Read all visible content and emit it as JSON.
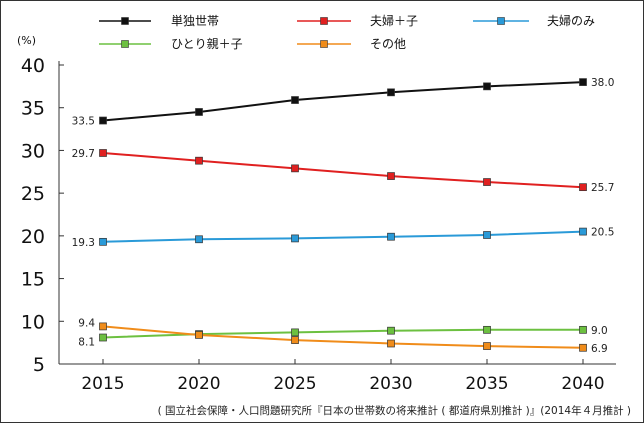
{
  "chart_data": {
    "type": "line",
    "x": [
      2015,
      2020,
      2025,
      2030,
      2035,
      2040
    ],
    "x_tick_labels": [
      "2015",
      "2020",
      "2025",
      "2030",
      "2035",
      "2040"
    ],
    "ylim": [
      5,
      40
    ],
    "y_ticks": [
      5,
      10,
      15,
      20,
      25,
      30,
      35,
      40
    ],
    "y_unit": "(%)",
    "grid": false,
    "legend_placement": "top",
    "series": [
      {
        "name": "単独世帯",
        "color": "#111111",
        "values": [
          33.5,
          34.5,
          35.9,
          36.8,
          37.5,
          38.0
        ],
        "first_label": "33.5",
        "last_label": "38.0"
      },
      {
        "name": "夫婦＋子",
        "color": "#e02020",
        "values": [
          29.7,
          28.8,
          27.9,
          27.0,
          26.3,
          25.7
        ],
        "first_label": "29.7",
        "last_label": "25.7"
      },
      {
        "name": "夫婦のみ",
        "color": "#2a9ad8",
        "values": [
          19.3,
          19.6,
          19.7,
          19.9,
          20.1,
          20.5
        ],
        "first_label": "19.3",
        "last_label": "20.5"
      },
      {
        "name": "ひとり親＋子",
        "color": "#6cc040",
        "values": [
          8.1,
          8.5,
          8.7,
          8.9,
          9.0,
          9.0
        ],
        "first_label": "8.1",
        "last_label": "9.0"
      },
      {
        "name": "その他",
        "color": "#f08c1a",
        "values": [
          9.4,
          8.4,
          7.8,
          7.4,
          7.1,
          6.9
        ],
        "first_label": "9.4",
        "last_label": "6.9"
      }
    ],
    "source": "( 国立社会保障・人口問題研究所『日本の世帯数の将来推計 ( 都道府県別推計 )』(2014年４月推計 )"
  }
}
